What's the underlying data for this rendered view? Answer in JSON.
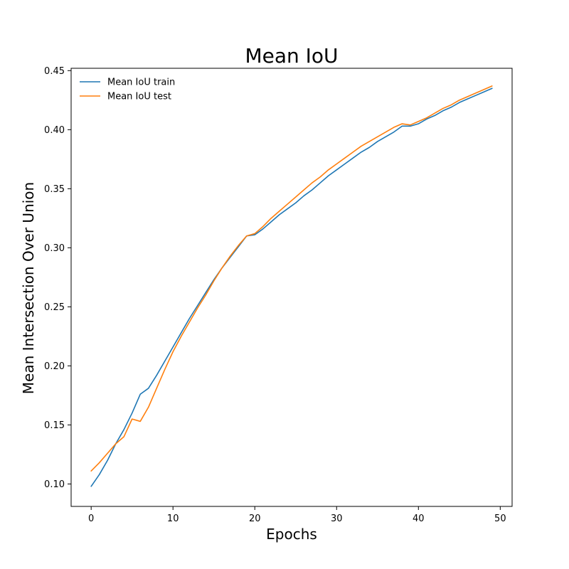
{
  "chart_data": {
    "type": "line",
    "title": "Mean IoU",
    "xlabel": "Epochs",
    "ylabel": "Mean Intersection Over Union",
    "xlim": [
      -2.45,
      51.45
    ],
    "ylim": [
      0.081,
      0.452
    ],
    "xticks": [
      0,
      10,
      20,
      30,
      40,
      50
    ],
    "yticks": [
      0.1,
      0.15,
      0.2,
      0.25,
      0.3,
      0.35,
      0.4,
      0.45
    ],
    "xtick_labels": [
      "0",
      "10",
      "20",
      "30",
      "40",
      "50"
    ],
    "ytick_labels": [
      "0.10",
      "0.15",
      "0.20",
      "0.25",
      "0.30",
      "0.35",
      "0.40",
      "0.45"
    ],
    "grid": false,
    "legend_position": "top-left",
    "x": [
      0,
      1,
      2,
      3,
      4,
      5,
      6,
      7,
      8,
      9,
      10,
      11,
      12,
      13,
      14,
      15,
      16,
      17,
      18,
      19,
      20,
      21,
      22,
      23,
      24,
      25,
      26,
      27,
      28,
      29,
      30,
      31,
      32,
      33,
      34,
      35,
      36,
      37,
      38,
      39,
      40,
      41,
      42,
      43,
      44,
      45,
      46,
      47,
      48,
      49
    ],
    "series": [
      {
        "name": "Mean IoU train",
        "color": "#1f77b4",
        "values": [
          0.098,
          0.108,
          0.12,
          0.134,
          0.146,
          0.16,
          0.176,
          0.181,
          0.192,
          0.204,
          0.216,
          0.228,
          0.24,
          0.251,
          0.262,
          0.273,
          0.283,
          0.292,
          0.301,
          0.31,
          0.311,
          0.316,
          0.322,
          0.328,
          0.333,
          0.338,
          0.344,
          0.349,
          0.355,
          0.361,
          0.366,
          0.371,
          0.376,
          0.381,
          0.385,
          0.39,
          0.394,
          0.398,
          0.403,
          0.403,
          0.405,
          0.409,
          0.412,
          0.416,
          0.419,
          0.423,
          0.426,
          0.429,
          0.432,
          0.435
        ]
      },
      {
        "name": "Mean IoU test",
        "color": "#ff7f0e",
        "values": [
          0.111,
          0.118,
          0.126,
          0.134,
          0.14,
          0.155,
          0.153,
          0.165,
          0.181,
          0.197,
          0.212,
          0.225,
          0.237,
          0.249,
          0.26,
          0.272,
          0.283,
          0.293,
          0.302,
          0.31,
          0.312,
          0.318,
          0.325,
          0.331,
          0.337,
          0.343,
          0.349,
          0.355,
          0.36,
          0.366,
          0.371,
          0.376,
          0.381,
          0.386,
          0.39,
          0.394,
          0.398,
          0.402,
          0.405,
          0.404,
          0.407,
          0.41,
          0.414,
          0.418,
          0.421,
          0.425,
          0.428,
          0.431,
          0.434,
          0.437
        ]
      }
    ]
  }
}
